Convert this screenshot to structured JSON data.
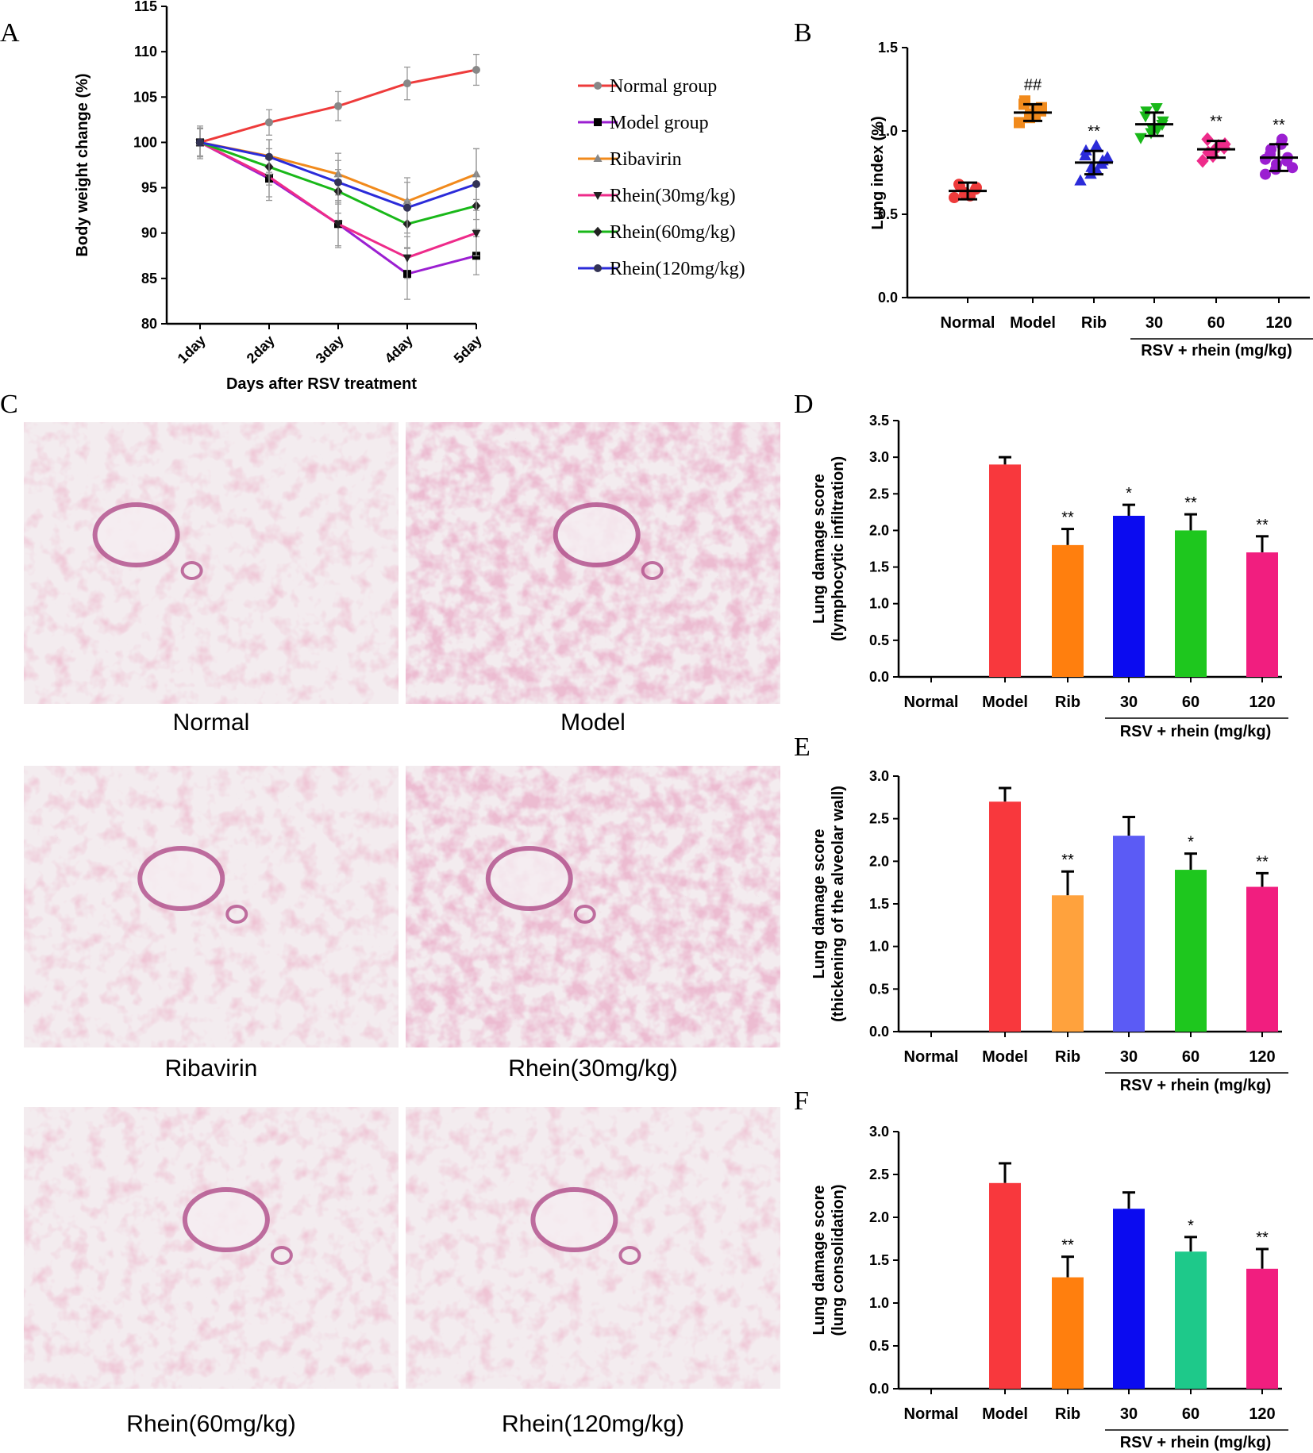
{
  "panel_labels": {
    "A": "A",
    "B": "B",
    "C": "C",
    "D": "D",
    "E": "E",
    "F": "F"
  },
  "colors": {
    "normal": "#ee3b3b",
    "model": "#9b1fd1",
    "ribavirin": "#f18a1c",
    "rhein30": "#ee2b8a",
    "rhein60": "#19b819",
    "rhein120": "#2b2bd9"
  },
  "chart_data": [
    {
      "id": "A",
      "type": "line",
      "x": [
        "1day",
        "2day",
        "3day",
        "4day",
        "5day"
      ],
      "xlabel": "Days after RSV treatment",
      "ylabel": "Body weight change (%)",
      "ylim": [
        80,
        115
      ],
      "yticks": [
        80,
        85,
        90,
        95,
        100,
        105,
        110,
        115
      ],
      "legend_position": "right",
      "series": [
        {
          "name": "Normal group",
          "values": [
            100,
            102.2,
            104,
            106.5,
            108
          ],
          "err": [
            1.8,
            1.4,
            1.6,
            1.8,
            1.7
          ],
          "marker": "circle",
          "color": "#ee3b3b",
          "marker_color": "#888888"
        },
        {
          "name": "Model group",
          "values": [
            100,
            96,
            91,
            85.5,
            87.5
          ],
          "err": [
            1.6,
            2.4,
            2.6,
            2.8,
            2.1
          ],
          "marker": "square",
          "color": "#9b1fd1",
          "marker_color": "#000000"
        },
        {
          "name": "Ribavirin",
          "values": [
            100,
            98.5,
            96.5,
            93.5,
            96.5
          ],
          "err": [
            1.5,
            1.8,
            2.3,
            2.6,
            2.8
          ],
          "marker": "triangle-up",
          "color": "#f18a1c",
          "marker_color": "#888888"
        },
        {
          "name": "Rhein(30mg/kg)",
          "values": [
            100,
            96.2,
            91,
            87.3,
            90
          ],
          "err": [
            1.5,
            2.2,
            2.4,
            2.3,
            2.5
          ],
          "marker": "triangle-down",
          "color": "#ee2b8a",
          "marker_color": "#222222"
        },
        {
          "name": "Rhein(60mg/kg)",
          "values": [
            100,
            97.3,
            94.6,
            91,
            93
          ],
          "err": [
            1.5,
            2,
            2.4,
            2.6,
            2.6
          ],
          "marker": "diamond",
          "color": "#19b819",
          "marker_color": "#222222"
        },
        {
          "name": "Rhein(120mg/kg)",
          "values": [
            100,
            98.4,
            95.6,
            92.8,
            95.4
          ],
          "err": [
            1.5,
            1.9,
            2.4,
            2.8,
            3.9
          ],
          "marker": "circle",
          "color": "#2b2bd9",
          "marker_color": "#333355"
        }
      ]
    },
    {
      "id": "B",
      "type": "scatter",
      "categories": [
        "Normal",
        "Model",
        "Rib",
        "30",
        "60",
        "120"
      ],
      "group_label": "RSV + rhein (mg/kg)",
      "ylabel": "Lung index (%)",
      "ylim": [
        0,
        1.5
      ],
      "yticks": [
        "0.0",
        "0.5",
        "1.0",
        "1.5"
      ],
      "means": [
        0.64,
        1.11,
        0.81,
        1.04,
        0.89,
        0.84
      ],
      "sd": [
        0.05,
        0.05,
        0.07,
        0.07,
        0.05,
        0.08
      ],
      "points": [
        [
          0.6,
          0.62,
          0.63,
          0.65,
          0.66,
          0.68,
          0.67,
          0.61
        ],
        [
          1.05,
          1.08,
          1.1,
          1.12,
          1.14,
          1.16,
          1.18,
          1.09,
          1.13
        ],
        [
          0.7,
          0.74,
          0.78,
          0.8,
          0.82,
          0.85,
          0.88,
          0.91,
          0.76,
          0.84
        ],
        [
          0.96,
          0.99,
          1.02,
          1.04,
          1.06,
          1.09,
          1.12,
          1.14,
          1.01
        ],
        [
          0.82,
          0.85,
          0.88,
          0.9,
          0.92,
          0.95,
          0.87,
          0.91
        ],
        [
          0.74,
          0.77,
          0.8,
          0.82,
          0.84,
          0.86,
          0.89,
          0.92,
          0.95,
          0.78,
          0.83
        ]
      ],
      "colors": [
        "#ee3b3b",
        "#f18a1c",
        "#2b2bd9",
        "#19b819",
        "#ee2b8a",
        "#9b1fd1"
      ],
      "marker": [
        "circle",
        "square",
        "triangle-up",
        "triangle-down",
        "diamond",
        "circle"
      ],
      "annotations": [
        "",
        "##",
        "**",
        "",
        "**",
        "**"
      ]
    },
    {
      "id": "D",
      "type": "bar",
      "categories": [
        "Normal",
        "Model",
        "Rib",
        "30",
        "60",
        "120"
      ],
      "group_label": "RSV + rhein (mg/kg)",
      "ylabel": "Lung damage score (lymphocytic infiltration)",
      "ylabel_lines": [
        "Lung damage score",
        "(lymphocytic infiltration)"
      ],
      "ylim": [
        0,
        3.5
      ],
      "yticks": [
        "0.0",
        "0.5",
        "1.0",
        "1.5",
        "2.0",
        "2.5",
        "3.0",
        "3.5"
      ],
      "values": [
        0,
        2.9,
        1.8,
        2.2,
        2.0,
        1.7
      ],
      "err": [
        0,
        0.1,
        0.22,
        0.15,
        0.22,
        0.22
      ],
      "colors": [
        "#ee3b3b",
        "#f8383d",
        "#ff7f0e",
        "#0b0bf0",
        "#1ec71e",
        "#f11e7f"
      ],
      "annotations": [
        "",
        "",
        "**",
        "*",
        "**",
        "**"
      ]
    },
    {
      "id": "E",
      "type": "bar",
      "categories": [
        "Normal",
        "Model",
        "Rib",
        "30",
        "60",
        "120"
      ],
      "group_label": "RSV + rhein (mg/kg)",
      "ylabel": "Lung damage score (thickening of the alveolar wall)",
      "ylabel_lines": [
        "Lung damage score",
        "(thickening of the alveolar wall)"
      ],
      "ylim": [
        0,
        3.0
      ],
      "yticks": [
        "0.0",
        "0.5",
        "1.0",
        "1.5",
        "2.0",
        "2.5",
        "3.0"
      ],
      "values": [
        0,
        2.7,
        1.6,
        2.3,
        1.9,
        1.7
      ],
      "err": [
        0,
        0.16,
        0.28,
        0.22,
        0.19,
        0.16
      ],
      "colors": [
        "#ee3b3b",
        "#f8383d",
        "#ffa23d",
        "#5b5bf5",
        "#1ec71e",
        "#f11e7f"
      ],
      "annotations": [
        "",
        "",
        "**",
        "",
        "*",
        "**"
      ]
    },
    {
      "id": "F",
      "type": "bar",
      "categories": [
        "Normal",
        "Model",
        "Rib",
        "30",
        "60",
        "120"
      ],
      "group_label": "RSV + rhein (mg/kg)",
      "ylabel": "Lung damage score (lung consolidation)",
      "ylabel_lines": [
        "Lung damage score",
        "(lung consolidation)"
      ],
      "ylim": [
        0,
        3.0
      ],
      "yticks": [
        "0.0",
        "0.5",
        "1.0",
        "1.5",
        "2.0",
        "2.5",
        "3.0"
      ],
      "values": [
        0,
        2.4,
        1.3,
        2.1,
        1.6,
        1.4
      ],
      "err": [
        0,
        0.23,
        0.24,
        0.19,
        0.17,
        0.23
      ],
      "colors": [
        "#ee3b3b",
        "#f8383d",
        "#ff7f0e",
        "#0b0bf0",
        "#1ec98a",
        "#f11e7f"
      ],
      "annotations": [
        "",
        "",
        "**",
        "",
        "*",
        "**"
      ]
    }
  ],
  "histology": {
    "panels": [
      {
        "caption": "Normal",
        "tone": "sparse"
      },
      {
        "caption": "Model",
        "tone": "dense"
      },
      {
        "caption": "Ribavirin",
        "tone": "medium"
      },
      {
        "caption": "Rhein(30mg/kg)",
        "tone": "dense"
      },
      {
        "caption": "Rhein(60mg/kg)",
        "tone": "medium"
      },
      {
        "caption": "Rhein(120mg/kg)",
        "tone": "sparse"
      }
    ]
  }
}
